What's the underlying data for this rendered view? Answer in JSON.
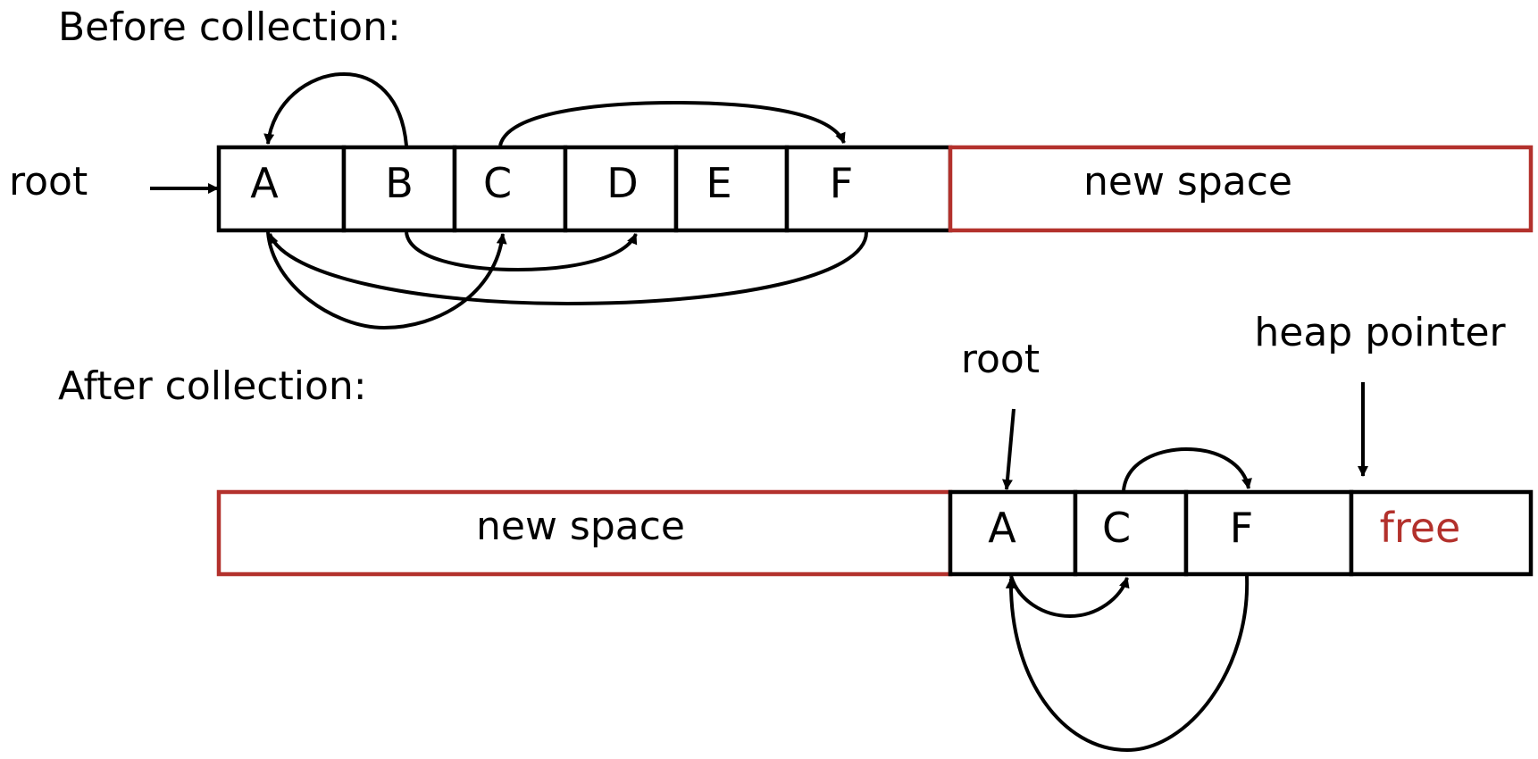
{
  "headings": {
    "before": "Before collection:",
    "after": "After collection:"
  },
  "before": {
    "root_label": "root",
    "cells": [
      "A",
      "B",
      "C",
      "D",
      "E",
      "F"
    ],
    "new_space_label": "new space"
  },
  "after": {
    "root_label": "root",
    "heap_pointer_label": "heap pointer",
    "new_space_label": "new space",
    "cells": [
      "A",
      "C",
      "F"
    ],
    "free_label": "free"
  },
  "colors": {
    "outline": "#000000",
    "space_outline": "#b3312c",
    "free_text": "#b3312c"
  }
}
